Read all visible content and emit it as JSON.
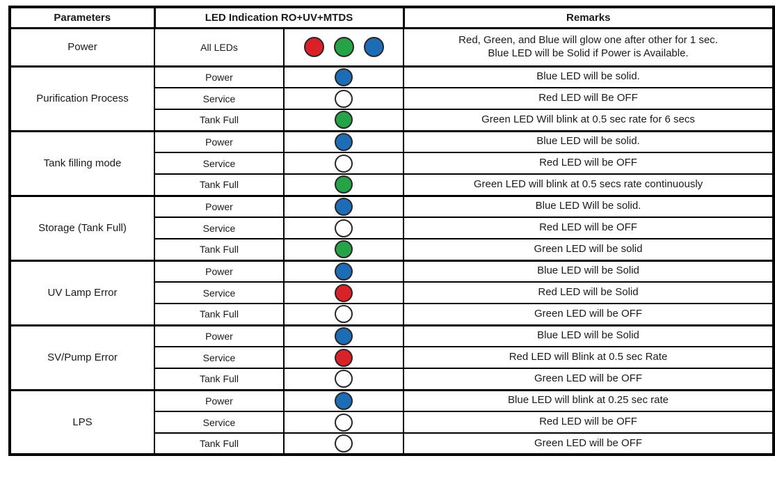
{
  "led_colors": {
    "red": "#da2128",
    "green": "#27a347",
    "blue": "#1d6db6",
    "off": "#ffffff"
  },
  "table": {
    "headers": {
      "parameters": "Parameters",
      "led_indication": "LED Indication RO+UV+MTDS",
      "remarks": "Remarks"
    },
    "groups": [
      {
        "parameter": "Power",
        "rows": [
          {
            "label": "All LEDs",
            "leds": [
              "red",
              "green",
              "blue"
            ],
            "remark": "Red, Green, and Blue will glow one after other for 1 sec.\nBlue LED will be Solid if Power is Available."
          }
        ]
      },
      {
        "parameter": "Purification Process",
        "rows": [
          {
            "label": "Power",
            "leds": [
              "blue"
            ],
            "remark": "Blue LED will be solid."
          },
          {
            "label": "Service",
            "leds": [
              "off"
            ],
            "remark": "Red LED will Be OFF"
          },
          {
            "label": "Tank Full",
            "leds": [
              "green"
            ],
            "remark": "Green LED Will blink at 0.5 sec rate for 6 secs"
          }
        ]
      },
      {
        "parameter": "Tank filling mode",
        "rows": [
          {
            "label": "Power",
            "leds": [
              "blue"
            ],
            "remark": "Blue LED will be solid."
          },
          {
            "label": "Service",
            "leds": [
              "off"
            ],
            "remark": "Red LED will be OFF"
          },
          {
            "label": "Tank Full",
            "leds": [
              "green"
            ],
            "remark": "Green LED will blink at 0.5 secs rate continuously"
          }
        ]
      },
      {
        "parameter": "Storage (Tank Full)",
        "rows": [
          {
            "label": "Power",
            "leds": [
              "blue"
            ],
            "remark": "Blue LED Will be solid."
          },
          {
            "label": "Service",
            "leds": [
              "off"
            ],
            "remark": "Red LED will be OFF"
          },
          {
            "label": "Tank Full",
            "leds": [
              "green"
            ],
            "remark": "Green LED will be solid"
          }
        ]
      },
      {
        "parameter": "UV Lamp Error",
        "rows": [
          {
            "label": "Power",
            "leds": [
              "blue"
            ],
            "remark": "Blue LED will be Solid"
          },
          {
            "label": "Service",
            "leds": [
              "red"
            ],
            "remark": "Red LED will be Solid"
          },
          {
            "label": "Tank Full",
            "leds": [
              "off"
            ],
            "remark": "Green LED will be OFF"
          }
        ]
      },
      {
        "parameter": "SV/Pump Error",
        "rows": [
          {
            "label": "Power",
            "leds": [
              "blue"
            ],
            "remark": "Blue LED will be Solid"
          },
          {
            "label": "Service",
            "leds": [
              "red"
            ],
            "remark": "Red LED will Blink at 0.5 sec Rate"
          },
          {
            "label": "Tank Full",
            "leds": [
              "off"
            ],
            "remark": "Green LED will be OFF"
          }
        ]
      },
      {
        "parameter": "LPS",
        "rows": [
          {
            "label": "Power",
            "leds": [
              "blue"
            ],
            "remark": "Blue LED will blink at 0.25 sec rate"
          },
          {
            "label": "Service",
            "leds": [
              "off"
            ],
            "remark": "Red LED will be OFF"
          },
          {
            "label": "Tank Full",
            "leds": [
              "off"
            ],
            "remark": "Green LED will be OFF"
          }
        ]
      }
    ]
  }
}
